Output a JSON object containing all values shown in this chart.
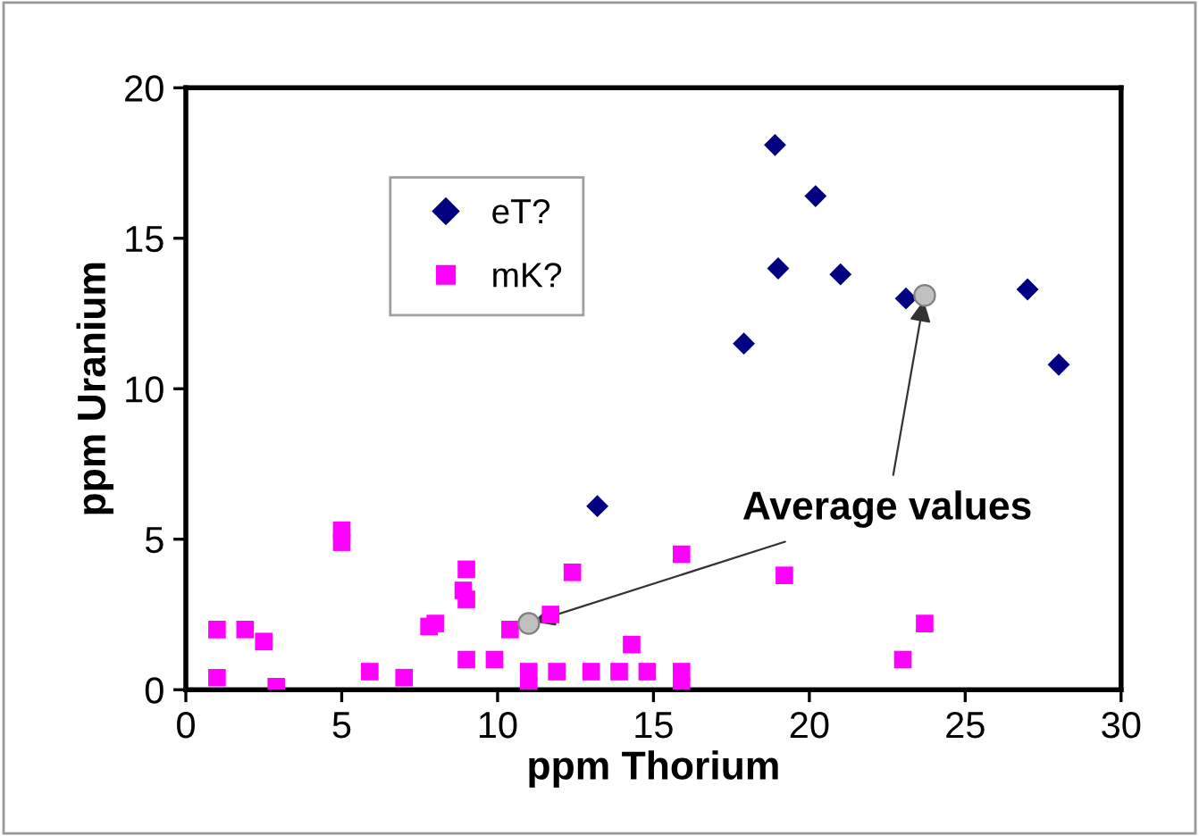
{
  "chart_data": {
    "type": "scatter",
    "xlabel": "ppm Thorium",
    "ylabel": "ppm Uranium",
    "xlim": [
      0,
      30
    ],
    "xticks": [
      0,
      5,
      10,
      15,
      20,
      25,
      30
    ],
    "ylim": [
      0,
      20
    ],
    "yticks": [
      0,
      5,
      10,
      15,
      20
    ],
    "grid": false,
    "legend": "top left",
    "series": [
      {
        "name": "eT?",
        "color": "#000080",
        "marker": "diamond",
        "x": [
          18.9,
          20.2,
          19.0,
          21.0,
          17.9,
          23.1,
          27.0,
          28.0,
          13.2
        ],
        "values": [
          18.1,
          16.4,
          14.0,
          13.8,
          11.5,
          13.0,
          13.3,
          10.8,
          6.1
        ]
      },
      {
        "name": "mK?",
        "color": "#ff00ff",
        "marker": "square",
        "x": [
          1.0,
          1.0,
          1.9,
          2.5,
          2.9,
          5.0,
          5.0,
          5.9,
          7.0,
          7.8,
          8.0,
          8.9,
          9.0,
          9.0,
          9.0,
          9.9,
          10.4,
          11.0,
          11.0,
          11.7,
          11.9,
          12.4,
          13.0,
          13.9,
          14.3,
          14.8,
          15.9,
          15.9,
          15.9,
          19.2,
          23.0,
          23.7
        ],
        "values": [
          2.0,
          0.4,
          2.0,
          1.6,
          0.1,
          5.3,
          4.9,
          0.6,
          0.4,
          2.1,
          2.2,
          3.3,
          3.0,
          4.0,
          1.0,
          1.0,
          2.0,
          0.6,
          0.1,
          2.5,
          0.6,
          3.9,
          0.6,
          0.6,
          1.5,
          0.6,
          4.5,
          0.6,
          0.1,
          3.8,
          1.0,
          2.2
        ]
      },
      {
        "color": "#c0c0c0",
        "marker": "circle",
        "x": [
          11.0,
          23.7
        ],
        "values": [
          2.2,
          13.1
        ]
      }
    ],
    "annotations": [
      {
        "text": "Average values",
        "x": 11.0,
        "y": 2.2
      }
    ]
  }
}
